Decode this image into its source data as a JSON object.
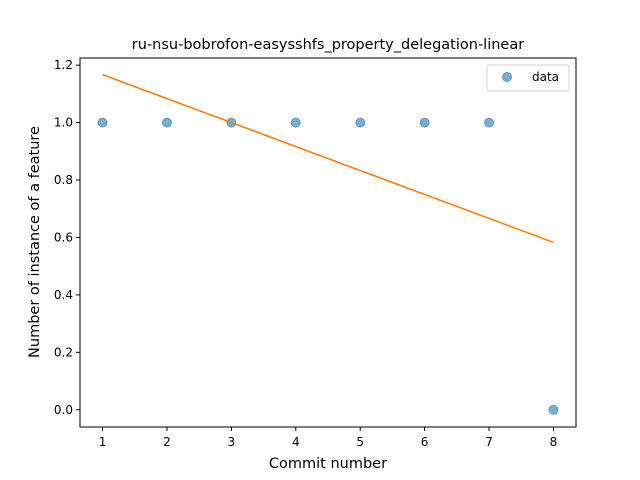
{
  "chart_data": {
    "type": "scatter",
    "title": "ru-nsu-bobrofon-easysshfs_property_delegation-linear",
    "xlabel": "Commit number",
    "ylabel": "Number of instance of a feature",
    "xlim": [
      0.65,
      8.35
    ],
    "ylim": [
      -0.06,
      1.225
    ],
    "x_ticks": [
      1,
      2,
      3,
      4,
      5,
      6,
      7,
      8
    ],
    "y_ticks": [
      0.0,
      0.2,
      0.4,
      0.6,
      0.8,
      1.0,
      1.2
    ],
    "y_tick_labels": [
      "0.0",
      "0.2",
      "0.4",
      "0.6",
      "0.8",
      "1.0",
      "1.2"
    ],
    "grid": false,
    "legend_position": "top-right",
    "series": [
      {
        "name": "data",
        "kind": "scatter",
        "color": "#1f77b4",
        "x": [
          1,
          2,
          3,
          4,
          5,
          6,
          7,
          8
        ],
        "y": [
          1,
          1,
          1,
          1,
          1,
          1,
          1,
          0
        ]
      },
      {
        "kind": "line",
        "color": "#ff7f0e",
        "x": [
          1,
          8
        ],
        "y": [
          1.167,
          0.583
        ]
      }
    ]
  }
}
